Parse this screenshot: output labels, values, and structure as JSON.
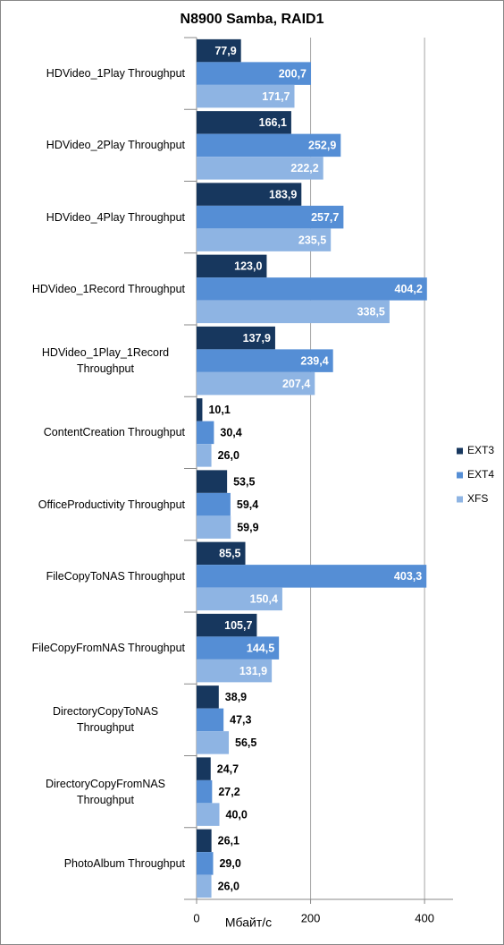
{
  "chart_data": {
    "type": "hbar",
    "title": "N8900 Samba, RAID1",
    "x_label": "Мбайт/с",
    "categories": [
      "HDVideo_1Play Throughput",
      "HDVideo_2Play Throughput",
      "HDVideo_4Play Throughput",
      "HDVideo_1Record Throughput",
      "HDVideo_1Play_1Record Throughput",
      "ContentCreation Throughput",
      "OfficeProductivity Throughput",
      "FileCopyToNAS Throughput",
      "FileCopyFromNAS Throughput",
      "DirectoryCopyToNAS Throughput",
      "DirectoryCopyFromNAS Throughput",
      "PhotoAlbum Throughput"
    ],
    "series": [
      {
        "name": "EXT3",
        "color": "#17375e",
        "values": [
          77.9,
          166.1,
          183.9,
          123.0,
          137.9,
          10.1,
          53.5,
          85.5,
          105.7,
          38.9,
          24.7,
          26.1
        ],
        "value_labels": [
          "77,9",
          "166,1",
          "183,9",
          "123,0",
          "137,9",
          "10,1",
          "53,5",
          "85,5",
          "105,7",
          "38,9",
          "24,7",
          "26,1"
        ]
      },
      {
        "name": "EXT4",
        "color": "#558ed5",
        "values": [
          200.7,
          252.9,
          257.7,
          404.2,
          239.4,
          30.4,
          59.4,
          403.3,
          144.5,
          47.3,
          27.2,
          29.0
        ],
        "value_labels": [
          "200,7",
          "252,9",
          "257,7",
          "404,2",
          "239,4",
          "30,4",
          "59,4",
          "403,3",
          "144,5",
          "47,3",
          "27,2",
          "29,0"
        ]
      },
      {
        "name": "XFS",
        "color": "#8eb4e3",
        "values": [
          171.7,
          222.2,
          235.5,
          338.5,
          207.4,
          26.0,
          59.9,
          150.4,
          131.9,
          56.5,
          40.0,
          26.0
        ],
        "value_labels": [
          "171,7",
          "222,2",
          "235,5",
          "338,5",
          "207,4",
          "26,0",
          "59,9",
          "150,4",
          "131,9",
          "56,5",
          "40,0",
          "26,0"
        ]
      }
    ],
    "xlim": [
      0,
      450
    ],
    "xticks": [
      0,
      200,
      400
    ],
    "grid": true,
    "legend": "right"
  }
}
